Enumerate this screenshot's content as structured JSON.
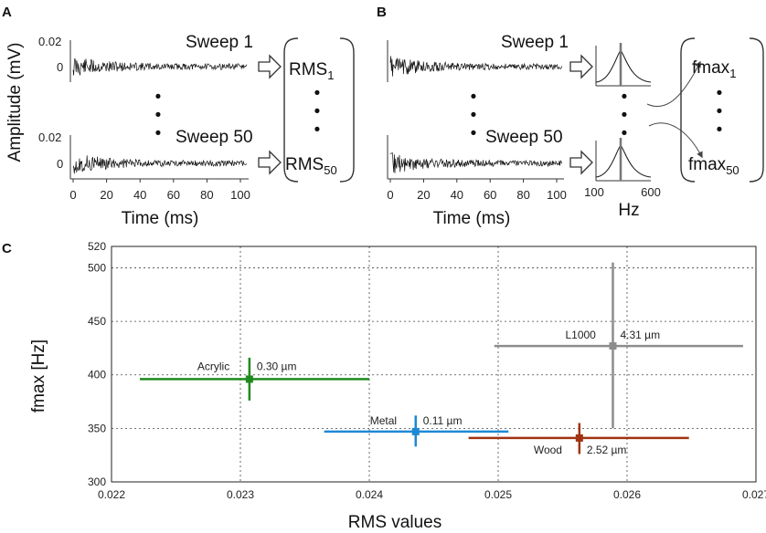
{
  "panels": {
    "a": {
      "letter": "A",
      "ylabel": "Amplitude (mV)",
      "y_tick_top": "0.02",
      "y_tick_zero": "0",
      "y_tick_top_bottom": "0.02",
      "y_tick_zero_bottom": "0",
      "x_ticks": [
        "0",
        "20",
        "40",
        "60",
        "80",
        "100"
      ],
      "xlabel": "Time (ms)",
      "sweep_first": "Sweep 1",
      "sweep_last": "Sweep 50",
      "result_first_base": "RMS",
      "result_first_sub": "1",
      "result_last_base": "RMS",
      "result_last_sub": "50",
      "ellipsis": "•"
    },
    "b": {
      "letter": "B",
      "x_ticks": [
        "0",
        "20",
        "40",
        "60",
        "80",
        "100"
      ],
      "xlabel": "Time (ms)",
      "sweep_first": "Sweep 1",
      "sweep_last": "Sweep 50",
      "spectrum_ticks": [
        "100",
        "600"
      ],
      "spectrum_xlabel": "Hz",
      "result_first_base": "fmax",
      "result_first_sub": "1",
      "result_last_base": "fmax",
      "result_last_sub": "50",
      "ellipsis": "•"
    }
  },
  "chart_data": {
    "type": "scatter",
    "panel_letter": "C",
    "xlabel": "RMS values",
    "ylabel": "fmax [Hz]",
    "xlim": [
      0.022,
      0.027
    ],
    "ylim": [
      300,
      520
    ],
    "x_ticks": [
      "0.022",
      "0.023",
      "0.024",
      "0.025",
      "0.026",
      "0.027"
    ],
    "y_ticks": [
      "300",
      "350",
      "400",
      "450",
      "500",
      "520"
    ],
    "grid": true,
    "series": [
      {
        "name": "Acrylic",
        "thickness": "0.30 µm",
        "x": 0.02307,
        "y": 396,
        "x_err": [
          0.02222,
          0.024
        ],
        "y_err": [
          376,
          416
        ],
        "color": "#1f8a1f"
      },
      {
        "name": "Metal",
        "thickness": "0.11 µm",
        "x": 0.02436,
        "y": 347,
        "x_err": [
          0.02365,
          0.02508
        ],
        "y_err": [
          333,
          362
        ],
        "color": "#1f88d4"
      },
      {
        "name": "Wood",
        "thickness": "2.52 µm",
        "x": 0.02563,
        "y": 341,
        "x_err": [
          0.02477,
          0.02648
        ],
        "y_err": [
          326,
          355
        ],
        "color": "#a03412"
      },
      {
        "name": "L1000",
        "thickness": "4.31 µm",
        "x": 0.02589,
        "y": 427,
        "x_err": [
          0.02497,
          0.0269
        ],
        "y_err": [
          350,
          505
        ],
        "color": "#8c8c8c"
      }
    ]
  }
}
